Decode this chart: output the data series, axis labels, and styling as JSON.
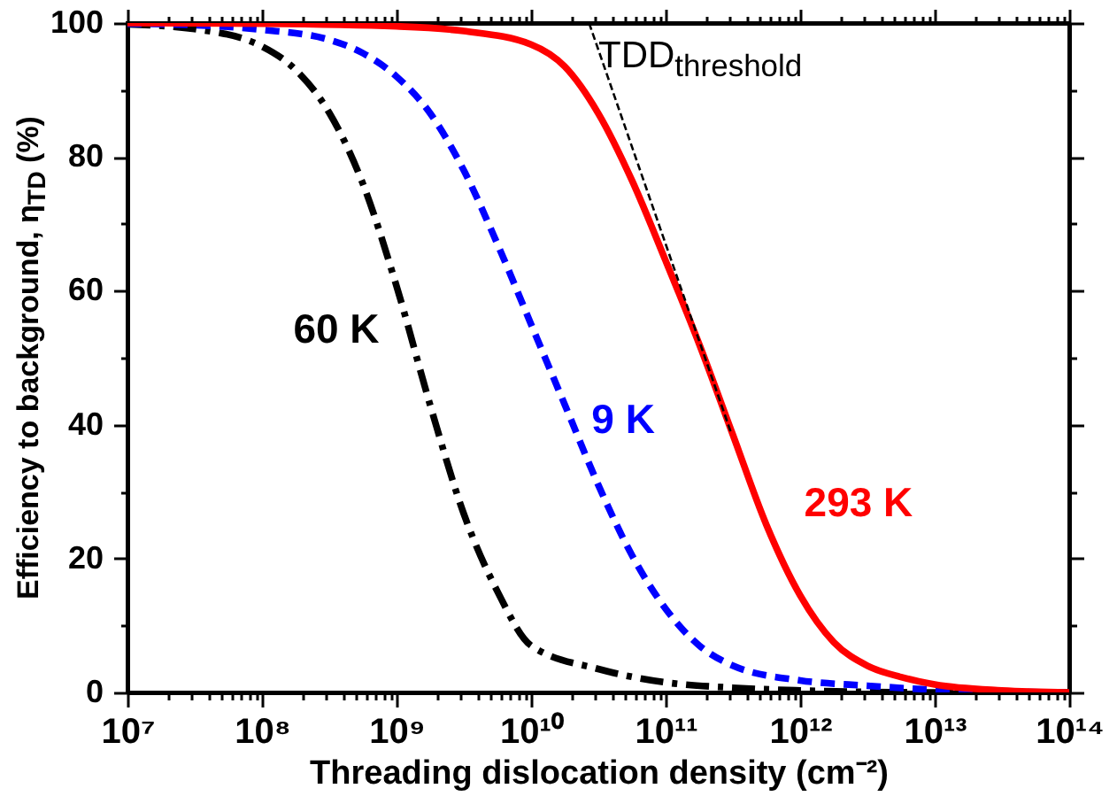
{
  "chart_data": {
    "type": "line",
    "xlabel": "Threading dislocation density (cm⁻²)",
    "ylabel": "Efficiency to background, η$_{TD}$ (%)",
    "log": "x",
    "xlim": [
      10000000.0,
      100000000000000.0
    ],
    "ylim": [
      0,
      100
    ],
    "xticks": [
      {
        "value": 10000000.0,
        "label": "10⁷"
      },
      {
        "value": 20000000.0,
        "label": null
      },
      {
        "value": 30000000.0,
        "label": null
      },
      {
        "value": 40000000.0,
        "label": null
      },
      {
        "value": 50000000.0,
        "label": null
      },
      {
        "value": 60000000.0,
        "label": null
      },
      {
        "value": 70000000.0,
        "label": null
      },
      {
        "value": 80000000.0,
        "label": null
      },
      {
        "value": 90000000.0,
        "label": null
      },
      {
        "value": 100000000.0,
        "label": "10⁸"
      },
      {
        "value": 200000000.0,
        "label": null
      },
      {
        "value": 300000000.0,
        "label": null
      },
      {
        "value": 400000000.0,
        "label": null
      },
      {
        "value": 500000000.0,
        "label": null
      },
      {
        "value": 600000000.0,
        "label": null
      },
      {
        "value": 700000000.0,
        "label": null
      },
      {
        "value": 800000000.0,
        "label": null
      },
      {
        "value": 900000000.0,
        "label": null
      },
      {
        "value": 1000000000.0,
        "label": "10⁹"
      },
      {
        "value": 2000000000.0,
        "label": null
      },
      {
        "value": 3000000000.0,
        "label": null
      },
      {
        "value": 4000000000.0,
        "label": null
      },
      {
        "value": 5000000000.0,
        "label": null
      },
      {
        "value": 6000000000.0,
        "label": null
      },
      {
        "value": 7000000000.0,
        "label": null
      },
      {
        "value": 8000000000.0,
        "label": null
      },
      {
        "value": 9000000000.0,
        "label": null
      },
      {
        "value": 10000000000.0,
        "label": "10¹⁰"
      },
      {
        "value": 20000000000.0,
        "label": null
      },
      {
        "value": 30000000000.0,
        "label": null
      },
      {
        "value": 40000000000.0,
        "label": null
      },
      {
        "value": 50000000000.0,
        "label": null
      },
      {
        "value": 60000000000.0,
        "label": null
      },
      {
        "value": 70000000000.0,
        "label": null
      },
      {
        "value": 80000000000.0,
        "label": null
      },
      {
        "value": 90000000000.0,
        "label": null
      },
      {
        "value": 100000000000.0,
        "label": "10¹¹"
      },
      {
        "value": 200000000000.0,
        "label": null
      },
      {
        "value": 300000000000.0,
        "label": null
      },
      {
        "value": 400000000000.0,
        "label": null
      },
      {
        "value": 500000000000.0,
        "label": null
      },
      {
        "value": 600000000000.0,
        "label": null
      },
      {
        "value": 700000000000.0,
        "label": null
      },
      {
        "value": 800000000000.0,
        "label": null
      },
      {
        "value": 900000000000.0,
        "label": null
      },
      {
        "value": 1000000000000.0,
        "label": "10¹²"
      },
      {
        "value": 2000000000000.0,
        "label": null
      },
      {
        "value": 3000000000000.0,
        "label": null
      },
      {
        "value": 4000000000000.0,
        "label": null
      },
      {
        "value": 5000000000000.0,
        "label": null
      },
      {
        "value": 6000000000000.0,
        "label": null
      },
      {
        "value": 7000000000000.0,
        "label": null
      },
      {
        "value": 8000000000000.0,
        "label": null
      },
      {
        "value": 9000000000000.0,
        "label": null
      },
      {
        "value": 10000000000000.0,
        "label": "10¹³"
      },
      {
        "value": 20000000000000.0,
        "label": null
      },
      {
        "value": 30000000000000.0,
        "label": null
      },
      {
        "value": 40000000000000.0,
        "label": null
      },
      {
        "value": 50000000000000.0,
        "label": null
      },
      {
        "value": 60000000000000.0,
        "label": null
      },
      {
        "value": 70000000000000.0,
        "label": null
      },
      {
        "value": 80000000000000.0,
        "label": null
      },
      {
        "value": 90000000000000.0,
        "label": null
      },
      {
        "value": 100000000000000.0,
        "label": "10¹⁴"
      }
    ],
    "yticks": [
      0,
      {
        "value": 10,
        "label": null
      },
      20,
      {
        "value": 30,
        "label": null
      },
      40,
      {
        "value": 50,
        "label": null
      },
      60,
      {
        "value": 70,
        "label": null
      },
      80,
      {
        "value": 90,
        "label": null
      },
      100
    ],
    "grid": false,
    "series": [
      {
        "name": "60 K",
        "color": "#000000",
        "line_style": "dashdot",
        "x": [
          10000000.0,
          31600000.0,
          100000000.0,
          178000000.0,
          316000000.0,
          562000000.0,
          1000000000.0,
          1780000000.0,
          3160000000.0,
          5620000000.0,
          10000000000.0,
          31600000000.0,
          100000000000.0,
          316000000000.0,
          1000000000000.0,
          10000000000000.0,
          100000000000000.0
        ],
        "values": [
          99.8,
          99.1,
          96.5,
          93.0,
          86.6,
          76.0,
          60.7,
          42.9,
          26.7,
          15.1,
          7.0,
          3.5,
          1.5,
          0.7,
          0.3,
          0,
          0
        ]
      },
      {
        "name": "9 K",
        "color": "#0000ff",
        "line_style": "dashed",
        "x": [
          10000000.0,
          31600000.0,
          100000000.0,
          316000000.0,
          562000000.0,
          1000000000.0,
          1780000000.0,
          3160000000.0,
          5620000000.0,
          10000000000.0,
          17800000000.0,
          31600000000.0,
          56200000000.0,
          100000000000.0,
          178000000000.0,
          316000000000.0,
          1000000000000.0,
          3160000000000.0,
          10000000000000.0,
          100000000000000.0
        ],
        "values": [
          99.9,
          99.7,
          99.0,
          97.5,
          95.5,
          92,
          86.5,
          78,
          67,
          55,
          43,
          31,
          20.5,
          12.5,
          7,
          4,
          1.8,
          1.0,
          0.4,
          0
        ]
      },
      {
        "name": "293 K",
        "color": "#ff0000",
        "line_style": "solid",
        "x": [
          10000000.0,
          100000000.0,
          1000000000.0,
          3160000000.0,
          10000000000.0,
          17800000000.0,
          31600000000.0,
          56200000000.0,
          100000000000.0,
          178000000000.0,
          316000000000.0,
          562000000000.0,
          1000000000000.0,
          1780000000000.0,
          3160000000000.0,
          5620000000000.0,
          10000000000000.0,
          31600000000000.0,
          100000000000000.0
        ],
        "values": [
          100,
          99.9,
          99.5,
          98.8,
          96.8,
          93.5,
          86.5,
          76.5,
          64.5,
          52,
          38.5,
          25,
          14.5,
          7.5,
          4,
          2.3,
          1.2,
          0.3,
          0
        ]
      },
      {
        "type": "line",
        "color": "#000000",
        "line_style": "dashed",
        "x": [
          27000000000.0,
          310000000000.0
        ],
        "values": [
          100,
          38.5
        ]
      }
    ],
    "annotations": [
      "TDD$_{threshold}$"
    ]
  }
}
